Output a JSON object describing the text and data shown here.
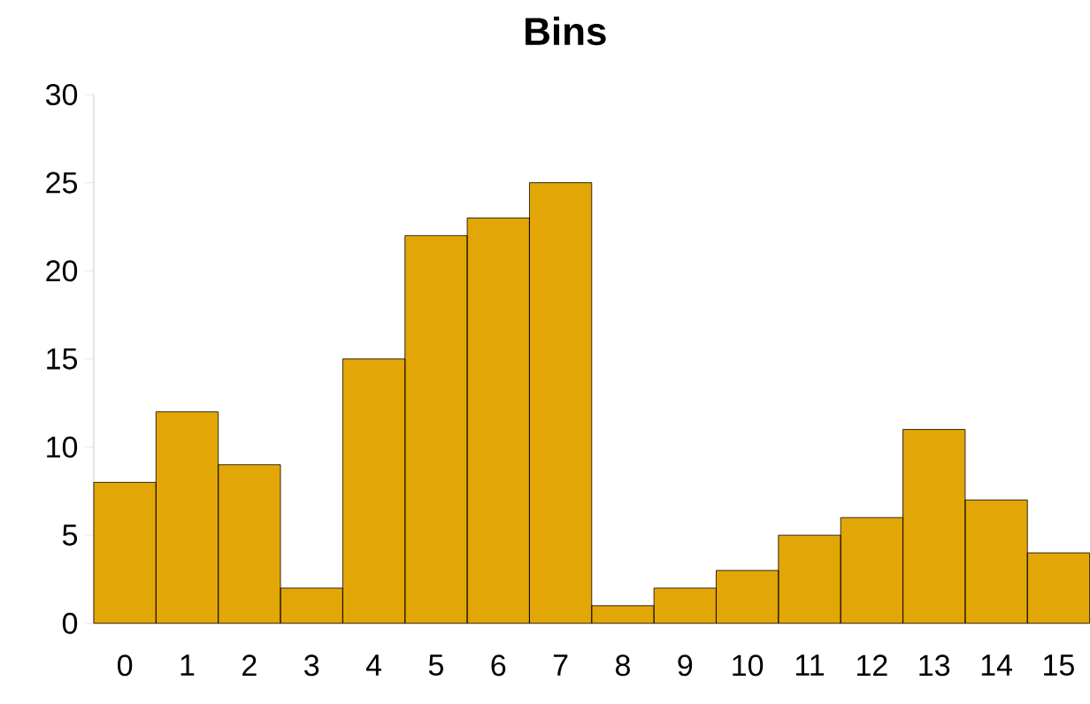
{
  "chart_data": {
    "type": "bar",
    "title": "Bins",
    "categories": [
      "0",
      "1",
      "2",
      "3",
      "4",
      "5",
      "6",
      "7",
      "8",
      "9",
      "10",
      "11",
      "12",
      "13",
      "14",
      "15"
    ],
    "values": [
      8,
      12,
      9,
      2,
      15,
      22,
      23,
      25,
      1,
      2,
      3,
      5,
      6,
      11,
      7,
      4
    ],
    "color": "#e2a606",
    "ylim": [
      0,
      30
    ],
    "yticks": [
      0,
      5,
      10,
      15,
      20,
      25,
      30
    ],
    "grid": false
  }
}
